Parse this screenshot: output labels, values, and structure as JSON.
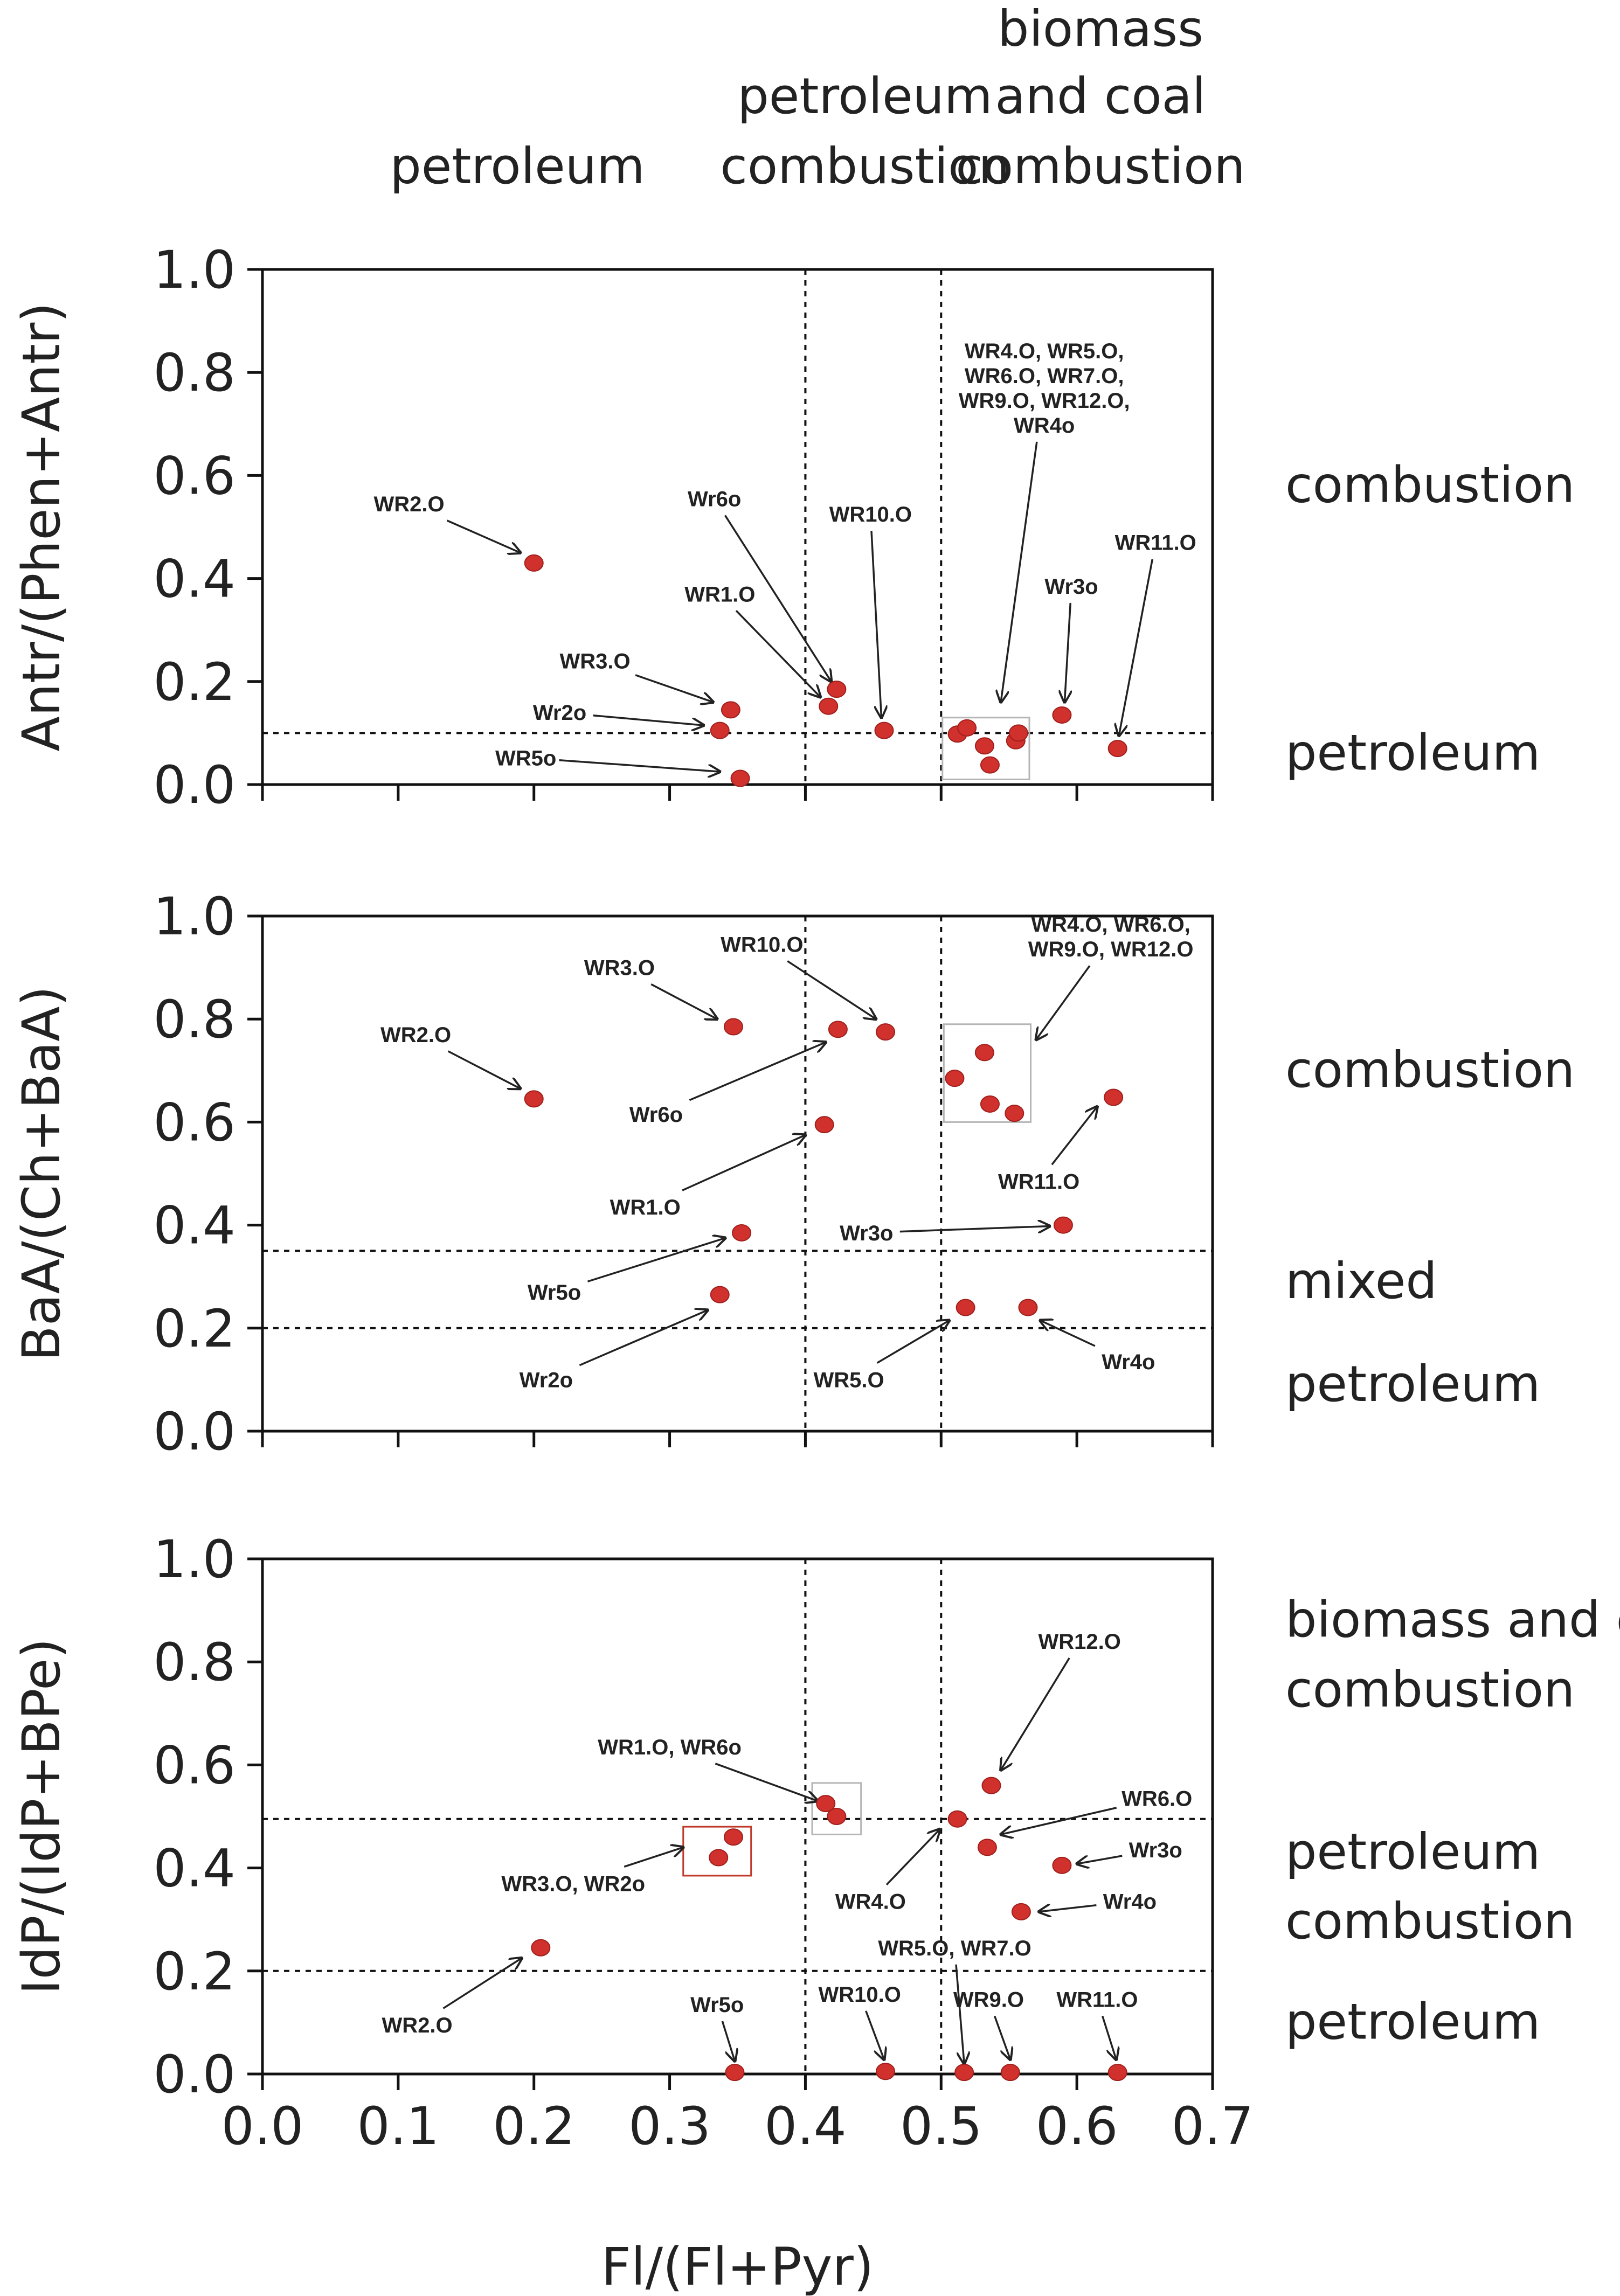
{
  "header_zones": [
    {
      "key": "h1",
      "lines": [
        "petroleum"
      ]
    },
    {
      "key": "h2",
      "lines": [
        "petroleum",
        "combustion"
      ]
    },
    {
      "key": "h3",
      "lines": [
        "biomass",
        "and coal",
        "combustion"
      ]
    }
  ],
  "x_axis": {
    "label": "Fl/(Fl+Pyr)",
    "ticks": [
      "0.0",
      "0.1",
      "0.2",
      "0.3",
      "0.4",
      "0.5",
      "0.6",
      "0.7"
    ]
  },
  "colors": {
    "point": "#d0312d"
  },
  "chart_data": [
    {
      "type": "scatter",
      "ylabel": "Antr/(Phen+Antr)",
      "xlim": [
        0.0,
        0.7
      ],
      "ylim": [
        0.0,
        1.0
      ],
      "y_ticks": [
        "0.0",
        "0.2",
        "0.4",
        "0.6",
        "0.8",
        "1.0"
      ],
      "vlines": [
        0.4,
        0.5
      ],
      "hlines": [
        0.1
      ],
      "zone_labels": [
        {
          "text": "combustion",
          "y": 0.58
        },
        {
          "text": "petroleum",
          "y": 0.06
        }
      ],
      "points": [
        {
          "x": 0.2,
          "y": 0.43
        },
        {
          "x": 0.345,
          "y": 0.145
        },
        {
          "x": 0.337,
          "y": 0.105
        },
        {
          "x": 0.352,
          "y": 0.012
        },
        {
          "x": 0.417,
          "y": 0.152
        },
        {
          "x": 0.423,
          "y": 0.185
        },
        {
          "x": 0.458,
          "y": 0.105
        },
        {
          "x": 0.512,
          "y": 0.098
        },
        {
          "x": 0.519,
          "y": 0.11
        },
        {
          "x": 0.532,
          "y": 0.075
        },
        {
          "x": 0.536,
          "y": 0.038
        },
        {
          "x": 0.555,
          "y": 0.085
        },
        {
          "x": 0.557,
          "y": 0.1
        },
        {
          "x": 0.589,
          "y": 0.135
        },
        {
          "x": 0.63,
          "y": 0.07
        }
      ],
      "annotations": [
        {
          "lines": [
            "WR2.O"
          ],
          "lx": 0.108,
          "ly": 0.545,
          "tx": 0.19,
          "ty": 0.45
        },
        {
          "lines": [
            "Wr6o"
          ],
          "lx": 0.333,
          "ly": 0.555,
          "tx": 0.419,
          "ty": 0.2
        },
        {
          "lines": [
            "WR10.O"
          ],
          "lx": 0.448,
          "ly": 0.525,
          "tx": 0.456,
          "ty": 0.13
        },
        {
          "lines": [
            "WR1.O"
          ],
          "lx": 0.337,
          "ly": 0.37,
          "tx": 0.411,
          "ty": 0.17
        },
        {
          "lines": [
            "WR3.O"
          ],
          "lx": 0.245,
          "ly": 0.24,
          "tx": 0.332,
          "ty": 0.16
        },
        {
          "lines": [
            "Wr2o"
          ],
          "lx": 0.219,
          "ly": 0.14,
          "tx": 0.325,
          "ty": 0.115
        },
        {
          "lines": [
            "WR5o"
          ],
          "lx": 0.194,
          "ly": 0.052,
          "tx": 0.337,
          "ty": 0.025
        },
        {
          "lines": [
            "WR4.O, WR5.O,",
            "WR6.O, WR7.O,",
            "WR9.O, WR12.O,",
            "WR4o"
          ],
          "lx": 0.576,
          "ly": 0.77,
          "tx": 0.544,
          "ty": 0.16
        },
        {
          "lines": [
            "Wr3o"
          ],
          "lx": 0.596,
          "ly": 0.385,
          "tx": 0.591,
          "ty": 0.16
        },
        {
          "lines": [
            "WR11.O"
          ],
          "lx": 0.658,
          "ly": 0.47,
          "tx": 0.631,
          "ty": 0.095
        }
      ],
      "boxes": [
        {
          "x0": 0.501,
          "x1": 0.565,
          "y0": 0.01,
          "y1": 0.13
        }
      ],
      "red_boxes": []
    },
    {
      "type": "scatter",
      "ylabel": "BaA/(Ch+BaA)",
      "xlim": [
        0.0,
        0.7
      ],
      "ylim": [
        0.0,
        1.0
      ],
      "y_ticks": [
        "0.0",
        "0.2",
        "0.4",
        "0.6",
        "0.8",
        "1.0"
      ],
      "vlines": [
        0.4,
        0.5
      ],
      "hlines": [
        0.35,
        0.2
      ],
      "zone_labels": [
        {
          "text": "combustion",
          "y": 0.7
        },
        {
          "text": "mixed",
          "y": 0.29
        },
        {
          "text": "petroleum",
          "y": 0.09
        }
      ],
      "points": [
        {
          "x": 0.2,
          "y": 0.645
        },
        {
          "x": 0.347,
          "y": 0.785
        },
        {
          "x": 0.424,
          "y": 0.78
        },
        {
          "x": 0.459,
          "y": 0.775
        },
        {
          "x": 0.414,
          "y": 0.595
        },
        {
          "x": 0.353,
          "y": 0.385
        },
        {
          "x": 0.337,
          "y": 0.265
        },
        {
          "x": 0.51,
          "y": 0.685
        },
        {
          "x": 0.532,
          "y": 0.735
        },
        {
          "x": 0.536,
          "y": 0.635
        },
        {
          "x": 0.554,
          "y": 0.617
        },
        {
          "x": 0.627,
          "y": 0.648
        },
        {
          "x": 0.59,
          "y": 0.4
        },
        {
          "x": 0.518,
          "y": 0.24
        },
        {
          "x": 0.564,
          "y": 0.24
        }
      ],
      "annotations": [
        {
          "lines": [
            "WR3.O"
          ],
          "lx": 0.263,
          "ly": 0.9,
          "tx": 0.335,
          "ty": 0.8
        },
        {
          "lines": [
            "WR10.O"
          ],
          "lx": 0.368,
          "ly": 0.945,
          "tx": 0.452,
          "ty": 0.8
        },
        {
          "lines": [
            "WR2.O"
          ],
          "lx": 0.113,
          "ly": 0.77,
          "tx": 0.19,
          "ty": 0.665
        },
        {
          "lines": [
            "Wr6o"
          ],
          "lx": 0.29,
          "ly": 0.615,
          "tx": 0.415,
          "ty": 0.755
        },
        {
          "lines": [
            "WR1.O"
          ],
          "lx": 0.282,
          "ly": 0.435,
          "tx": 0.4,
          "ty": 0.575
        },
        {
          "lines": [
            "Wr5o"
          ],
          "lx": 0.215,
          "ly": 0.27,
          "tx": 0.341,
          "ty": 0.375
        },
        {
          "lines": [
            "Wr2o"
          ],
          "lx": 0.209,
          "ly": 0.1,
          "tx": 0.328,
          "ty": 0.235
        },
        {
          "lines": [
            "WR4.O, WR6.O,",
            "WR9.O, WR12.O"
          ],
          "lx": 0.625,
          "ly": 0.96,
          "tx": 0.57,
          "ty": 0.76
        },
        {
          "lines": [
            "WR11.O"
          ],
          "lx": 0.572,
          "ly": 0.485,
          "tx": 0.615,
          "ty": 0.63
        },
        {
          "lines": [
            "Wr3o"
          ],
          "lx": 0.445,
          "ly": 0.385,
          "tx": 0.58,
          "ty": 0.398
        },
        {
          "lines": [
            "WR5.O"
          ],
          "lx": 0.432,
          "ly": 0.1,
          "tx": 0.506,
          "ty": 0.215
        },
        {
          "lines": [
            "Wr4o"
          ],
          "lx": 0.638,
          "ly": 0.135,
          "tx": 0.573,
          "ty": 0.215
        }
      ],
      "boxes": [
        {
          "x0": 0.502,
          "x1": 0.566,
          "y0": 0.6,
          "y1": 0.79
        }
      ],
      "red_boxes": []
    },
    {
      "type": "scatter",
      "ylabel": "IdP/(IdP+BPe)",
      "xlim": [
        0.0,
        0.7
      ],
      "ylim": [
        0.0,
        1.0
      ],
      "y_ticks": [
        "0.0",
        "0.2",
        "0.4",
        "0.6",
        "0.8",
        "1.0"
      ],
      "vlines": [
        0.4,
        0.5
      ],
      "hlines": [
        0.495,
        0.2
      ],
      "zone_labels": [
        {
          "text": "biomass and coal",
          "y": 0.88
        },
        {
          "text": "combustion",
          "y": 0.745
        },
        {
          "text": "petroleum",
          "y": 0.43
        },
        {
          "text": "combustion",
          "y": 0.295
        },
        {
          "text": "petroleum",
          "y": 0.1
        }
      ],
      "points": [
        {
          "x": 0.205,
          "y": 0.245
        },
        {
          "x": 0.347,
          "y": 0.46
        },
        {
          "x": 0.336,
          "y": 0.42
        },
        {
          "x": 0.415,
          "y": 0.525
        },
        {
          "x": 0.423,
          "y": 0.5
        },
        {
          "x": 0.512,
          "y": 0.495
        },
        {
          "x": 0.537,
          "y": 0.56
        },
        {
          "x": 0.534,
          "y": 0.44
        },
        {
          "x": 0.589,
          "y": 0.405
        },
        {
          "x": 0.559,
          "y": 0.315
        },
        {
          "x": 0.348,
          "y": 0.003
        },
        {
          "x": 0.459,
          "y": 0.005
        },
        {
          "x": 0.517,
          "y": 0.003
        },
        {
          "x": 0.551,
          "y": 0.003
        },
        {
          "x": 0.63,
          "y": 0.003
        }
      ],
      "annotations": [
        {
          "lines": [
            "WR12.O"
          ],
          "lx": 0.602,
          "ly": 0.84,
          "tx": 0.544,
          "ty": 0.59
        },
        {
          "lines": [
            "WR1.O, WR6o"
          ],
          "lx": 0.3,
          "ly": 0.635,
          "tx": 0.409,
          "ty": 0.53
        },
        {
          "lines": [
            "WR6.O"
          ],
          "lx": 0.659,
          "ly": 0.535,
          "tx": 0.544,
          "ty": 0.465
        },
        {
          "lines": [
            "Wr3o"
          ],
          "lx": 0.658,
          "ly": 0.435,
          "tx": 0.6,
          "ty": 0.408
        },
        {
          "lines": [
            "WR3.O, WR2o"
          ],
          "lx": 0.229,
          "ly": 0.37,
          "tx": 0.31,
          "ty": 0.44
        },
        {
          "lines": [
            "WR4.O"
          ],
          "lx": 0.448,
          "ly": 0.335,
          "tx": 0.499,
          "ty": 0.475
        },
        {
          "lines": [
            "Wr4o"
          ],
          "lx": 0.639,
          "ly": 0.335,
          "tx": 0.572,
          "ty": 0.315
        },
        {
          "lines": [
            "WR5.O, WR7.O"
          ],
          "lx": 0.51,
          "ly": 0.245,
          "tx": 0.517,
          "ty": 0.02
        },
        {
          "lines": [
            "WR2.O"
          ],
          "lx": 0.114,
          "ly": 0.095,
          "tx": 0.191,
          "ty": 0.225
        },
        {
          "lines": [
            "Wr5o"
          ],
          "lx": 0.335,
          "ly": 0.135,
          "tx": 0.348,
          "ty": 0.025
        },
        {
          "lines": [
            "WR10.O"
          ],
          "lx": 0.44,
          "ly": 0.155,
          "tx": 0.458,
          "ty": 0.028
        },
        {
          "lines": [
            "WR9.O"
          ],
          "lx": 0.535,
          "ly": 0.145,
          "tx": 0.551,
          "ty": 0.028
        },
        {
          "lines": [
            "WR11.O"
          ],
          "lx": 0.615,
          "ly": 0.145,
          "tx": 0.629,
          "ty": 0.028
        }
      ],
      "boxes": [
        {
          "x0": 0.405,
          "x1": 0.441,
          "y0": 0.465,
          "y1": 0.565
        }
      ],
      "red_boxes": [
        {
          "x0": 0.31,
          "x1": 0.36,
          "y0": 0.385,
          "y1": 0.48
        }
      ]
    }
  ]
}
